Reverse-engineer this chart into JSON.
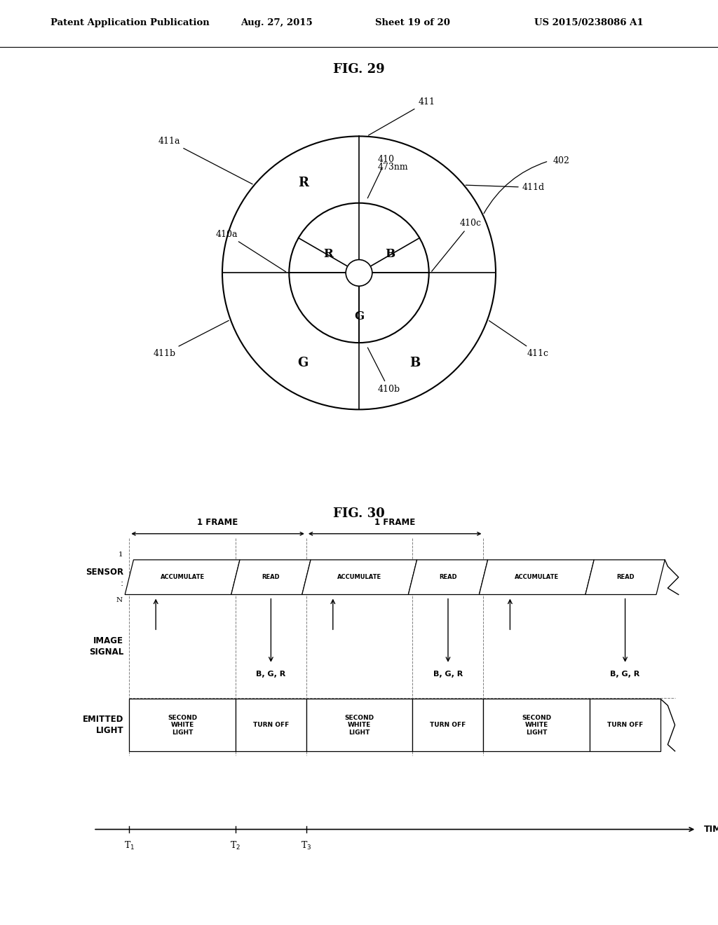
{
  "bg_color": "#ffffff",
  "header_text": "Patent Application Publication",
  "header_date": "Aug. 27, 2015",
  "header_sheet": "Sheet 19 of 20",
  "header_patent": "US 2015/0238086 A1",
  "fig29_title": "FIG. 29",
  "fig30_title": "FIG. 30",
  "sensor_labels": [
    "ACCUMULATE",
    "READ",
    "ACCUMULATE",
    "READ",
    "ACCUMULATE",
    "READ"
  ],
  "emitted_labels": [
    "SECOND\nWHITE\nLIGHT",
    "TURN OFF",
    "SECOND\nWHITE\nLIGHT",
    "TURN OFF",
    "SECOND\nWHITE\nLIGHT",
    "TURN OFF"
  ],
  "bgr_label": "B, G, R",
  "frame_label": "1 FRAME",
  "time_label": "TIME",
  "t1": "T$_1$",
  "t2": "T$_2$",
  "t3": "T$_3$",
  "sensor_row_label": "SENSOR",
  "image_signal_label": "IMAGE\nSIGNAL",
  "emitted_light_label": "EMITTED\nLIGHT"
}
